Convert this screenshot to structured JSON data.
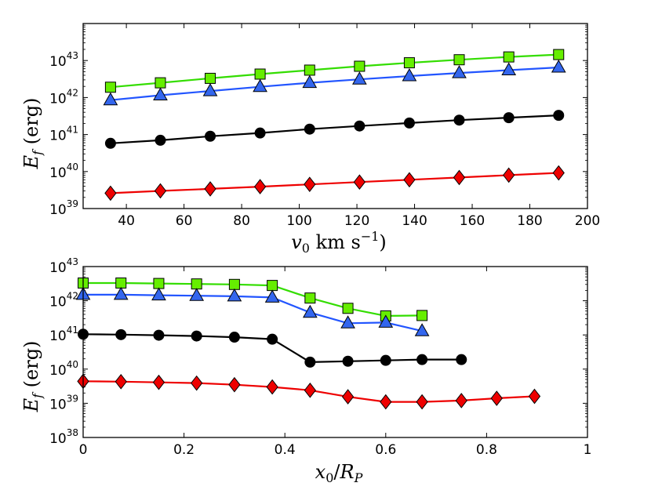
{
  "chart_data": [
    {
      "type": "line",
      "id": "top",
      "ylabel": "E_f (erg)",
      "xlabel": "v_0 km s^-1)",
      "yscale": "log",
      "xlim": [
        25,
        200
      ],
      "ylim": [
        1e+39,
        1e+44
      ],
      "xticks": [
        40,
        60,
        80,
        100,
        120,
        140,
        160,
        180,
        200
      ],
      "xtick_labels": [
        "40",
        "60",
        "80",
        "100",
        "120",
        "140",
        "160",
        "180",
        "200"
      ],
      "yticks": [
        1e+39,
        1e+40,
        1e+41,
        1e+42,
        1e+43
      ],
      "ytick_labels": [
        {
          "base": "10",
          "exp": "39"
        },
        {
          "base": "10",
          "exp": "40"
        },
        {
          "base": "10",
          "exp": "41"
        },
        {
          "base": "10",
          "exp": "42"
        },
        {
          "base": "10",
          "exp": "43"
        }
      ],
      "series": [
        {
          "name": "green-squares",
          "color": "#33dd00",
          "marker_fill": "#66ee00",
          "marker": "square",
          "x": [
            34.5,
            51.8,
            69.1,
            86.4,
            103.6,
            120.9,
            138.2,
            155.5,
            172.7,
            190
          ],
          "y": [
            1.9e+42,
            2.5e+42,
            3.3e+42,
            4.3e+42,
            5.5e+42,
            7e+42,
            8.7e+42,
            1.05e+43,
            1.25e+43,
            1.45e+43
          ]
        },
        {
          "name": "blue-triangles",
          "color": "#2255ff",
          "marker_fill": "#3366ee",
          "marker": "triangle",
          "x": [
            34.5,
            51.8,
            69.1,
            86.4,
            103.6,
            120.9,
            138.2,
            155.5,
            172.7,
            190
          ],
          "y": [
            8.5e+41,
            1.15e+42,
            1.5e+42,
            1.95e+42,
            2.5e+42,
            3.1e+42,
            3.8e+42,
            4.6e+42,
            5.5e+42,
            6.5e+42
          ]
        },
        {
          "name": "black-circles",
          "color": "#000000",
          "marker_fill": "#000000",
          "marker": "circle",
          "x": [
            34.5,
            51.8,
            69.1,
            86.4,
            103.6,
            120.9,
            138.2,
            155.5,
            172.7,
            190
          ],
          "y": [
            5.8e+40,
            7e+40,
            9e+40,
            1.1e+41,
            1.4e+41,
            1.7e+41,
            2.05e+41,
            2.45e+41,
            2.85e+41,
            3.3e+41
          ]
        },
        {
          "name": "red-diamonds",
          "color": "#ee0000",
          "marker_fill": "#ee0000",
          "marker": "diamond",
          "x": [
            34.5,
            51.8,
            69.1,
            86.4,
            103.6,
            120.9,
            138.2,
            155.5,
            172.7,
            190
          ],
          "y": [
            2.6e+39,
            3e+39,
            3.4e+39,
            3.9e+39,
            4.5e+39,
            5.2e+39,
            6e+39,
            6.9e+39,
            8e+39,
            9.2e+39
          ]
        }
      ]
    },
    {
      "type": "line",
      "id": "bottom",
      "ylabel": "E_f (erg)",
      "xlabel": "x_0/R_P",
      "yscale": "log",
      "xlim": [
        0,
        1
      ],
      "ylim": [
        1e+38,
        1e+43
      ],
      "xticks": [
        0,
        0.2,
        0.4,
        0.6,
        0.8,
        1
      ],
      "xtick_labels": [
        "0",
        "0.2",
        "0.4",
        "0.6",
        "0.8",
        "1"
      ],
      "yticks": [
        1e+38,
        1e+39,
        1e+40,
        1e+41,
        1e+42,
        1e+43
      ],
      "ytick_labels": [
        {
          "base": "10",
          "exp": "38"
        },
        {
          "base": "10",
          "exp": "39"
        },
        {
          "base": "10",
          "exp": "40"
        },
        {
          "base": "10",
          "exp": "41"
        },
        {
          "base": "10",
          "exp": "42"
        },
        {
          "base": "10",
          "exp": "43"
        }
      ],
      "series": [
        {
          "name": "green-squares",
          "color": "#33dd00",
          "marker_fill": "#66ee00",
          "marker": "square",
          "x": [
            0,
            0.075,
            0.15,
            0.225,
            0.3,
            0.375,
            0.45,
            0.525,
            0.6,
            0.672
          ],
          "y": [
            3.3e+42,
            3.3e+42,
            3.2e+42,
            3.1e+42,
            3e+42,
            2.8e+42,
            1.2e+42,
            6e+41,
            3.6e+41,
            3.7e+41
          ]
        },
        {
          "name": "blue-triangles",
          "color": "#2255ff",
          "marker_fill": "#3366ee",
          "marker": "triangle",
          "x": [
            0,
            0.075,
            0.15,
            0.225,
            0.3,
            0.375,
            0.45,
            0.525,
            0.6,
            0.672
          ],
          "y": [
            1.5e+42,
            1.5e+42,
            1.45e+42,
            1.4e+42,
            1.35e+42,
            1.25e+42,
            4.5e+41,
            2.2e+41,
            2.3e+41,
            1.3e+41
          ]
        },
        {
          "name": "black-circles",
          "color": "#000000",
          "marker_fill": "#000000",
          "marker": "circle",
          "x": [
            0,
            0.075,
            0.15,
            0.225,
            0.3,
            0.375,
            0.45,
            0.525,
            0.6,
            0.672,
            0.75
          ],
          "y": [
            1.05e+41,
            1.02e+41,
            9.8e+40,
            9.3e+40,
            8.6e+40,
            7.5e+40,
            1.6e+40,
            1.7e+40,
            1.8e+40,
            1.9e+40,
            1.9e+40
          ]
        },
        {
          "name": "red-diamonds",
          "color": "#ee0000",
          "marker_fill": "#ee0000",
          "marker": "diamond",
          "x": [
            0,
            0.075,
            0.15,
            0.225,
            0.3,
            0.375,
            0.45,
            0.525,
            0.6,
            0.672,
            0.75,
            0.82,
            0.895
          ],
          "y": [
            4.4e+39,
            4.3e+39,
            4.1e+39,
            3.9e+39,
            3.5e+39,
            3e+39,
            2.4e+39,
            1.55e+39,
            1.1e+39,
            1.1e+39,
            1.2e+39,
            1.4e+39,
            1.6e+39
          ]
        }
      ]
    }
  ]
}
